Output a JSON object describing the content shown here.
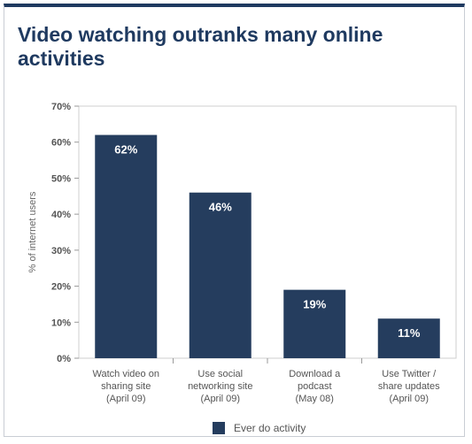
{
  "chart_data": {
    "type": "bar",
    "title": "Video watching outranks many online activities",
    "ylabel": "% of internet users",
    "xlabel": "",
    "ylim": [
      0,
      70
    ],
    "yticks": [
      "0%",
      "10%",
      "20%",
      "30%",
      "40%",
      "50%",
      "60%",
      "70%"
    ],
    "categories": [
      [
        "Watch video on",
        "sharing site",
        "(April 09)"
      ],
      [
        "Use social",
        "networking site",
        "(April 09)"
      ],
      [
        "Download a",
        "podcast",
        "(May 08)"
      ],
      [
        "Use Twitter /",
        "share updates",
        "(April 09)"
      ]
    ],
    "series": [
      {
        "name": "Ever do activity",
        "values": [
          62,
          46,
          19,
          11
        ],
        "labels": [
          "62%",
          "46%",
          "19%",
          "11%"
        ],
        "color": "#253d5e"
      }
    ],
    "grid": false,
    "legend": "bottom-center"
  }
}
